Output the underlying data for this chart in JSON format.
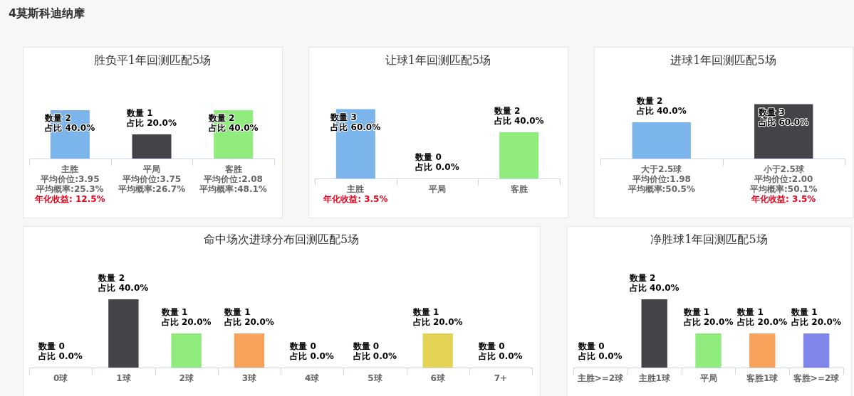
{
  "chart_data": [
    {
      "type": "bar",
      "title": "胜负平1年回测匹配5场",
      "categories": [
        "主胜",
        "平局",
        "客胜"
      ],
      "values": [
        2,
        1,
        2
      ],
      "colors": [
        "#7cb5ec",
        "#434348",
        "#90ed7d"
      ],
      "value_labels": [
        "数量 2\n占比 40.0%",
        "数量 1\n占比 20.0%",
        "数量 2\n占比 40.0%"
      ],
      "tick_labels": "x",
      "annotations": [
        "4莫斯科迪纳摩",
        "平均价位:3.95",
        "平均概率:25.3%",
        "年化收益: 12.5%",
        "平均价位:3.75",
        "平均概率:26.7%",
        "平均价位:2.08",
        "平均概率:48.1%"
      ]
    },
    {
      "type": "bar",
      "title": "让球1年回测匹配5场",
      "categories": [
        "主胜",
        "平局",
        "客胜"
      ],
      "values": [
        3,
        0,
        2
      ],
      "colors": [
        "#7cb5ec",
        null,
        "#90ed7d"
      ],
      "value_labels": [
        "数量 3\n占比 60.0%",
        "数量 0\n占比 0.0%",
        "数量 2\n占比 40.0%"
      ],
      "tick_labels": "x",
      "annotations": [
        "年化收益: 3.5%"
      ]
    },
    {
      "type": "bar",
      "title": "进球1年回测匹配5场",
      "categories": [
        "大于2.5球",
        "小于2.5球"
      ],
      "values": [
        2,
        3
      ],
      "colors": [
        "#7cb5ec",
        "#434348"
      ],
      "value_labels": [
        "数量 2\n占比 40.0%",
        "数量 3\n占比 60.0%"
      ],
      "tick_labels": "x",
      "annotations": [
        "平均价位:1.98",
        "平均概率:50.5%",
        "平均价位:2.00",
        "平均概率:50.1%",
        "年化收益: 3.5%"
      ]
    },
    {
      "type": "bar",
      "title": "命中场次进球分布回测匹配5场",
      "categories": [
        "0球",
        "1球",
        "2球",
        "3球",
        "4球",
        "5球",
        "6球",
        "7+"
      ],
      "values": [
        0,
        2,
        1,
        1,
        0,
        0,
        1,
        0
      ],
      "colors": [
        null,
        "#434348",
        "#90ed7d",
        "#f7a35c",
        null,
        null,
        "#e4d354",
        null
      ],
      "value_labels": [
        "数量 0\n占比 0.0%",
        "数量 2\n占比 40.0%",
        "数量 1\n占比 20.0%",
        "数量 1\n占比 20.0%",
        "数量 0\n占比 0.0%",
        "数量 0\n占比 0.0%",
        "数量 1\n占比 20.0%",
        "数量 0\n占比 0.0%"
      ],
      "tick_labels": "x"
    },
    {
      "type": "bar",
      "title": "净胜球1年回测匹配5场",
      "categories": [
        "主胜>=2球",
        "主胜1球",
        "平局",
        "客胜1球",
        "客胜>=2球"
      ],
      "values": [
        0,
        2,
        1,
        1,
        1
      ],
      "colors": [
        null,
        "#434348",
        "#90ed7d",
        "#f7a35c",
        "#8085e9"
      ],
      "value_labels": [
        "数量 0\n占比 0.0%",
        "数量 2\n占比 40.0%",
        "数量 1\n占比 20.0%",
        "数量 1\n占比 20.0%",
        "数量 1\n占比 20.0%"
      ],
      "tick_labels": "x"
    }
  ]
}
